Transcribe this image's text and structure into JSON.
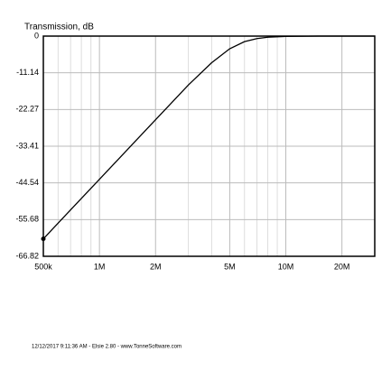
{
  "chart_data": {
    "type": "line",
    "y_label": "Transmission, dB",
    "x": [
      500000,
      700000,
      1000000,
      1500000,
      2000000,
      3000000,
      4000000,
      5000000,
      6000000,
      7000000,
      8000000,
      10000000,
      15000000,
      20000000,
      30000000
    ],
    "series": [
      {
        "color": "#000000",
        "values": [
          -61.52,
          -52.74,
          -43.46,
          -32.89,
          -25.39,
          -14.84,
          -8.07,
          -3.84,
          -1.69,
          -0.75,
          -0.35,
          -0.1,
          -0.01,
          0,
          0
        ]
      }
    ],
    "xlim": [
      500000,
      30000000
    ],
    "x_log": true,
    "xticks": [
      {
        "value": 500000,
        "label": "500k"
      },
      {
        "value": 1000000,
        "label": "1M"
      },
      {
        "value": 2000000,
        "label": "2M"
      },
      {
        "value": 5000000,
        "label": "5M"
      },
      {
        "value": 10000000,
        "label": "10M"
      },
      {
        "value": 20000000,
        "label": "20M"
      }
    ],
    "xgrid_minor": [
      600000,
      700000,
      800000,
      900000,
      3000000,
      4000000,
      6000000,
      7000000,
      8000000,
      9000000
    ],
    "ylim": [
      -66.82,
      0
    ],
    "yticks": [
      0,
      -11.14,
      -22.27,
      -33.41,
      -44.54,
      -55.68,
      -66.82
    ],
    "grid": true,
    "footer": "12/12/2017 9:11:36 AM   -   Elsie 2.80   -   www.TonneSoftware.com"
  }
}
